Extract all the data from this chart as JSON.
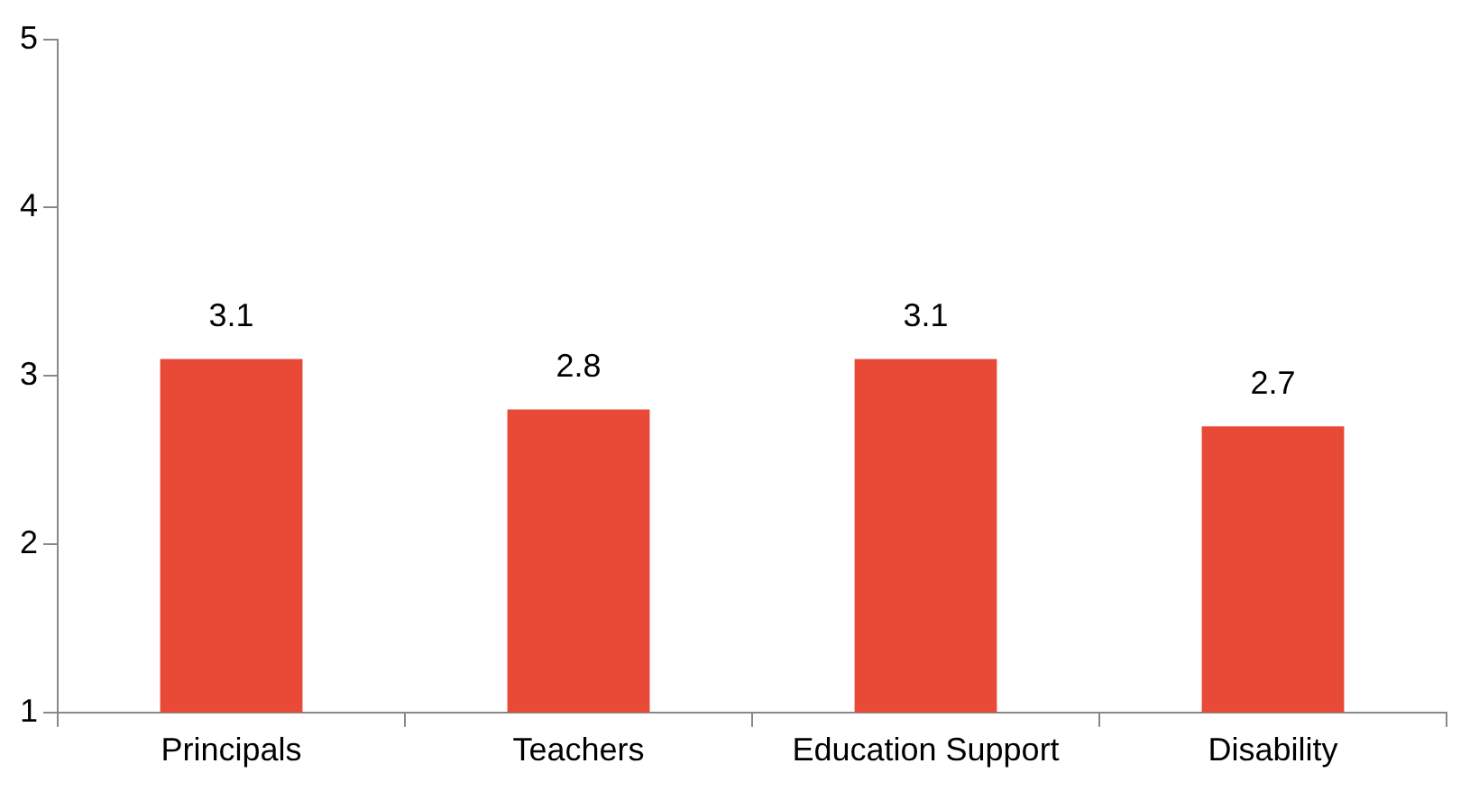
{
  "chart_data": {
    "type": "bar",
    "categories": [
      "Principals",
      "Teachers",
      "Education Support",
      "Disability"
    ],
    "values": [
      3.1,
      2.8,
      3.1,
      2.7
    ],
    "color": "#e84a37",
    "ylim": [
      1,
      5
    ],
    "yticks": [
      1,
      2,
      3,
      4,
      5
    ],
    "grid": false,
    "legend": false,
    "data_labels": true
  }
}
